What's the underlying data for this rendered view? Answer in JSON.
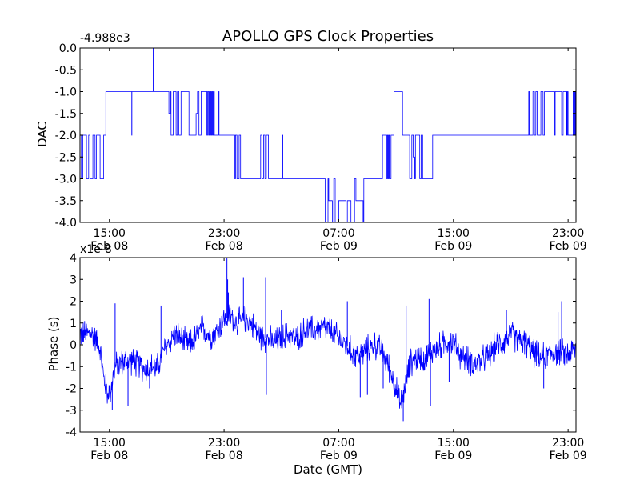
{
  "figure_title": "APOLLO GPS Clock Properties",
  "xlabel": "Date (GMT)",
  "x_ticks": [
    {
      "t": 15.0,
      "time": "15:00",
      "date": "Feb 08"
    },
    {
      "t": 23.0,
      "time": "23:00",
      "date": "Feb 08"
    },
    {
      "t": 31.0,
      "time": "07:00",
      "date": "Feb 09"
    },
    {
      "t": 39.0,
      "time": "15:00",
      "date": "Feb 09"
    },
    {
      "t": 47.0,
      "time": "23:00",
      "date": "Feb 09"
    }
  ],
  "colors": {
    "series": "#0000ff"
  },
  "chart_data": [
    {
      "type": "line",
      "ylabel": "DAC",
      "offset_label": "-4.988e3",
      "xlim": [
        12.95,
        47.55
      ],
      "ylim": [
        -4.0,
        0.0
      ],
      "y_ticks": [
        0.0,
        -0.5,
        -1.0,
        -1.5,
        -2.0,
        -2.5,
        -3.0,
        -3.5,
        -4.0
      ],
      "y_tick_labels": [
        "0.0",
        "-0.5",
        "-1.0",
        "-1.5",
        "-2.0",
        "-2.5",
        "-3.0",
        "-3.5",
        "-4.0"
      ],
      "series": [
        {
          "kind": "step",
          "points": [
            [
              12.95,
              -2.0
            ],
            [
              13.05,
              -3.0
            ],
            [
              13.15,
              -2.0
            ],
            [
              13.4,
              -3.0
            ],
            [
              13.55,
              -2.0
            ],
            [
              13.65,
              -3.0
            ],
            [
              13.85,
              -2.0
            ],
            [
              14.0,
              -3.0
            ],
            [
              14.1,
              -2.0
            ],
            [
              14.35,
              -3.0
            ],
            [
              14.6,
              -2.0
            ],
            [
              14.75,
              -1.0
            ],
            [
              16.55,
              -1.0
            ],
            [
              16.56,
              -2.0
            ],
            [
              16.57,
              -1.0
            ],
            [
              18.0,
              -1.0
            ],
            [
              18.05,
              0.0
            ],
            [
              18.1,
              -1.0
            ],
            [
              19.1,
              -1.0
            ],
            [
              19.15,
              -1.5
            ],
            [
              19.25,
              -1.0
            ],
            [
              19.3,
              -2.0
            ],
            [
              19.45,
              -1.0
            ],
            [
              19.65,
              -2.0
            ],
            [
              19.75,
              -1.0
            ],
            [
              19.85,
              -2.0
            ],
            [
              20.0,
              -1.0
            ],
            [
              20.5,
              -1.0
            ],
            [
              20.55,
              -2.0
            ],
            [
              21.0,
              -2.0
            ],
            [
              21.05,
              -1.5
            ],
            [
              21.15,
              -1.0
            ],
            [
              21.25,
              -2.0
            ],
            [
              21.4,
              -1.0
            ],
            [
              21.75,
              -1.0
            ],
            [
              21.8,
              -2.0
            ],
            [
              21.85,
              -1.0
            ],
            [
              21.92,
              -2.0
            ],
            [
              21.97,
              -1.0
            ],
            [
              22.02,
              -2.0
            ],
            [
              22.07,
              -1.0
            ],
            [
              22.12,
              -2.0
            ],
            [
              22.17,
              -1.0
            ],
            [
              22.22,
              -2.0
            ],
            [
              22.27,
              -1.0
            ],
            [
              22.32,
              -2.0
            ],
            [
              22.55,
              -2.0
            ],
            [
              22.6,
              -1.0
            ],
            [
              22.65,
              -2.0
            ],
            [
              23.7,
              -2.0
            ],
            [
              23.75,
              -3.0
            ],
            [
              23.8,
              -2.0
            ],
            [
              23.9,
              -3.0
            ],
            [
              24.05,
              -2.0
            ],
            [
              24.15,
              -3.0
            ],
            [
              25.5,
              -3.0
            ],
            [
              25.55,
              -2.0
            ],
            [
              25.65,
              -3.0
            ],
            [
              25.75,
              -2.0
            ],
            [
              25.85,
              -3.0
            ],
            [
              25.95,
              -2.0
            ],
            [
              26.1,
              -3.0
            ],
            [
              27.0,
              -3.0
            ],
            [
              27.05,
              -2.0
            ],
            [
              27.1,
              -3.0
            ],
            [
              30.0,
              -3.0
            ],
            [
              30.05,
              -4.0
            ],
            [
              30.25,
              -3.0
            ],
            [
              30.3,
              -3.5
            ],
            [
              30.55,
              -4.0
            ],
            [
              30.65,
              -3.0
            ],
            [
              30.75,
              -4.0
            ],
            [
              31.0,
              -3.5
            ],
            [
              31.5,
              -4.0
            ],
            [
              31.6,
              -3.5
            ],
            [
              31.85,
              -4.0
            ],
            [
              32.1,
              -3.0
            ],
            [
              32.2,
              -3.5
            ],
            [
              32.7,
              -4.0
            ],
            [
              32.75,
              -3.0
            ],
            [
              33.0,
              -3.0
            ],
            [
              34.0,
              -3.0
            ],
            [
              34.05,
              -2.0
            ],
            [
              34.35,
              -3.0
            ],
            [
              34.4,
              -2.0
            ],
            [
              34.45,
              -3.0
            ],
            [
              34.5,
              -2.0
            ],
            [
              34.55,
              -3.0
            ],
            [
              34.65,
              -2.0
            ],
            [
              34.8,
              -2.0
            ],
            [
              34.85,
              -1.0
            ],
            [
              35.45,
              -2.0
            ],
            [
              35.9,
              -2.0
            ],
            [
              35.95,
              -3.0
            ],
            [
              36.1,
              -2.0
            ],
            [
              36.2,
              -2.5
            ],
            [
              36.3,
              -3.0
            ],
            [
              36.35,
              -2.0
            ],
            [
              36.6,
              -2.0
            ],
            [
              36.65,
              -3.0
            ],
            [
              36.75,
              -2.0
            ],
            [
              36.85,
              -3.0
            ],
            [
              37.0,
              -3.0
            ],
            [
              37.5,
              -3.0
            ],
            [
              37.55,
              -2.0
            ],
            [
              40.7,
              -2.0
            ],
            [
              40.71,
              -3.0
            ],
            [
              40.72,
              -2.0
            ],
            [
              44.2,
              -2.0
            ],
            [
              44.25,
              -1.0
            ],
            [
              44.3,
              -2.0
            ],
            [
              44.5,
              -2.0
            ],
            [
              44.55,
              -1.0
            ],
            [
              44.65,
              -2.0
            ],
            [
              44.75,
              -1.0
            ],
            [
              44.85,
              -2.0
            ],
            [
              45.1,
              -1.0
            ],
            [
              45.25,
              -2.0
            ],
            [
              45.35,
              -1.0
            ],
            [
              45.5,
              -1.0
            ],
            [
              46.0,
              -1.0
            ],
            [
              46.05,
              -2.0
            ],
            [
              46.1,
              -1.0
            ],
            [
              46.5,
              -1.0
            ],
            [
              46.55,
              -2.0
            ],
            [
              46.65,
              -1.0
            ],
            [
              46.85,
              -1.0
            ],
            [
              46.9,
              -2.0
            ],
            [
              46.95,
              -1.0
            ],
            [
              47.0,
              -2.0
            ],
            [
              47.3,
              -2.0
            ],
            [
              47.35,
              -1.0
            ],
            [
              47.4,
              -2.0
            ],
            [
              47.45,
              -1.0
            ],
            [
              47.5,
              -2.0
            ],
            [
              47.55,
              -1.0
            ]
          ]
        }
      ]
    },
    {
      "type": "line",
      "ylabel": "Phase (s)",
      "offset_label": "x1e-8",
      "xlim": [
        12.95,
        47.55
      ],
      "ylim": [
        -4,
        4
      ],
      "y_ticks": [
        4,
        3,
        2,
        1,
        0,
        -1,
        -2,
        -3,
        -4
      ],
      "y_tick_labels": [
        "4",
        "3",
        "2",
        "1",
        "0",
        "-1",
        "-2",
        "-3",
        "-4"
      ],
      "series": [
        {
          "kind": "noisy-line",
          "trend": [
            [
              12.95,
              0.5
            ],
            [
              13.3,
              0.5
            ],
            [
              13.8,
              0.5
            ],
            [
              14.3,
              0.0
            ],
            [
              14.6,
              -1.5
            ],
            [
              14.9,
              -2.3
            ],
            [
              15.1,
              -2.0
            ],
            [
              15.4,
              -1.0
            ],
            [
              15.9,
              -0.8
            ],
            [
              16.5,
              -0.7
            ],
            [
              17.0,
              -0.9
            ],
            [
              17.5,
              -1.1
            ],
            [
              18.0,
              -1.0
            ],
            [
              18.3,
              -1.1
            ],
            [
              19.0,
              0.0
            ],
            [
              19.6,
              0.5
            ],
            [
              20.1,
              0.2
            ],
            [
              20.5,
              0.0
            ],
            [
              21.0,
              0.3
            ],
            [
              21.5,
              0.8
            ],
            [
              22.0,
              0.4
            ],
            [
              22.5,
              0.6
            ],
            [
              23.0,
              1.2
            ],
            [
              23.5,
              1.3
            ],
            [
              24.0,
              1.0
            ],
            [
              24.5,
              1.2
            ],
            [
              25.0,
              0.9
            ],
            [
              25.5,
              0.4
            ],
            [
              26.0,
              0.3
            ],
            [
              26.5,
              0.1
            ],
            [
              27.0,
              0.3
            ],
            [
              27.5,
              0.5
            ],
            [
              28.0,
              0.2
            ],
            [
              28.5,
              0.6
            ],
            [
              29.0,
              0.7
            ],
            [
              29.5,
              0.7
            ],
            [
              30.0,
              0.8
            ],
            [
              30.5,
              0.6
            ],
            [
              31.0,
              0.3
            ],
            [
              31.5,
              0.0
            ],
            [
              32.0,
              -0.4
            ],
            [
              32.5,
              -0.5
            ],
            [
              33.0,
              -0.2
            ],
            [
              33.5,
              0.0
            ],
            [
              34.0,
              -0.3
            ],
            [
              34.5,
              -1.0
            ],
            [
              35.0,
              -2.0
            ],
            [
              35.3,
              -2.8
            ],
            [
              35.6,
              -2.0
            ],
            [
              36.0,
              -0.8
            ],
            [
              36.5,
              -0.6
            ],
            [
              37.0,
              -0.6
            ],
            [
              37.5,
              -0.3
            ],
            [
              38.0,
              -0.1
            ],
            [
              38.5,
              0.1
            ],
            [
              39.0,
              0.1
            ],
            [
              39.5,
              -0.5
            ],
            [
              40.0,
              -0.7
            ],
            [
              40.5,
              -0.9
            ],
            [
              41.0,
              -0.7
            ],
            [
              41.5,
              -0.5
            ],
            [
              42.0,
              0.0
            ],
            [
              42.5,
              0.1
            ],
            [
              43.0,
              0.5
            ],
            [
              43.5,
              0.2
            ],
            [
              44.0,
              0.1
            ],
            [
              44.5,
              -0.3
            ],
            [
              45.0,
              -0.6
            ],
            [
              45.5,
              -0.5
            ],
            [
              46.0,
              -0.3
            ],
            [
              46.5,
              -0.4
            ],
            [
              47.0,
              -0.4
            ],
            [
              47.55,
              -0.2
            ]
          ],
          "noise_amplitude": 0.6,
          "spikes": [
            [
              23.2,
              4.0
            ],
            [
              23.25,
              3.0
            ],
            [
              23.3,
              2.4
            ],
            [
              24.35,
              3.1
            ],
            [
              25.9,
              3.1
            ],
            [
              25.95,
              -2.3
            ],
            [
              27.0,
              1.6
            ],
            [
              33.0,
              -2.3
            ],
            [
              31.6,
              2.0
            ],
            [
              32.5,
              -2.4
            ],
            [
              34.1,
              -2.0
            ],
            [
              35.5,
              -3.5
            ],
            [
              35.7,
              1.8
            ],
            [
              37.3,
              2.1
            ],
            [
              37.4,
              -2.8
            ],
            [
              38.7,
              -1.7
            ],
            [
              42.7,
              1.6
            ],
            [
              45.3,
              -2.0
            ],
            [
              46.3,
              1.5
            ],
            [
              46.55,
              2.0
            ],
            [
              16.3,
              -2.8
            ],
            [
              17.8,
              -2.0
            ],
            [
              18.6,
              1.8
            ],
            [
              15.2,
              -3.0
            ],
            [
              15.4,
              1.9
            ]
          ]
        }
      ]
    }
  ]
}
